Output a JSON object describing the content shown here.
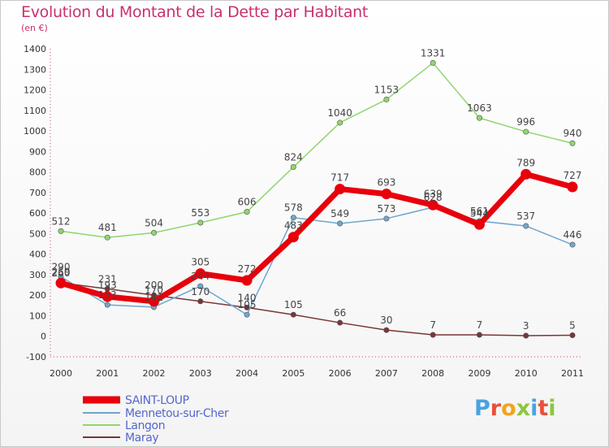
{
  "header": {
    "title": "Evolution du Montant de la Dette par Habitant",
    "unit": "(en €)"
  },
  "logo": {
    "text": "Proxiti"
  },
  "chart_data": {
    "type": "line",
    "title": "Evolution du Montant de la Dette par Habitant",
    "ylabel": "(en €)",
    "xlabel": "",
    "x": [
      "2000",
      "2001",
      "2002",
      "2003",
      "2004",
      "2005",
      "2006",
      "2007",
      "2008",
      "2009",
      "2010",
      "2011"
    ],
    "ylim": [
      -100,
      1400
    ],
    "yticks": [
      -100,
      0,
      100,
      200,
      300,
      400,
      500,
      600,
      700,
      800,
      900,
      1000,
      1100,
      1200,
      1300,
      1400
    ],
    "grid": false,
    "legend_position": "bottom-left",
    "series": [
      {
        "name": "SAINT-LOUP",
        "color": "#e8000b",
        "values": [
          259,
          193,
          170,
          305,
          272,
          483,
          717,
          693,
          639,
          544,
          789,
          727
        ]
      },
      {
        "name": "Mennetou-sur-Cher",
        "color": "#6fa6cf",
        "values": [
          290,
          153,
          142,
          244,
          105,
          578,
          549,
          573,
          628,
          561,
          537,
          446
        ]
      },
      {
        "name": "Langon",
        "color": "#8fd66e",
        "values": [
          512,
          481,
          504,
          553,
          606,
          824,
          1040,
          1153,
          1331,
          1063,
          996,
          940
        ]
      },
      {
        "name": "Maray",
        "color": "#7a3636",
        "values": [
          260,
          231,
          200,
          170,
          140,
          105,
          66,
          30,
          7,
          7,
          3,
          5
        ]
      }
    ]
  }
}
